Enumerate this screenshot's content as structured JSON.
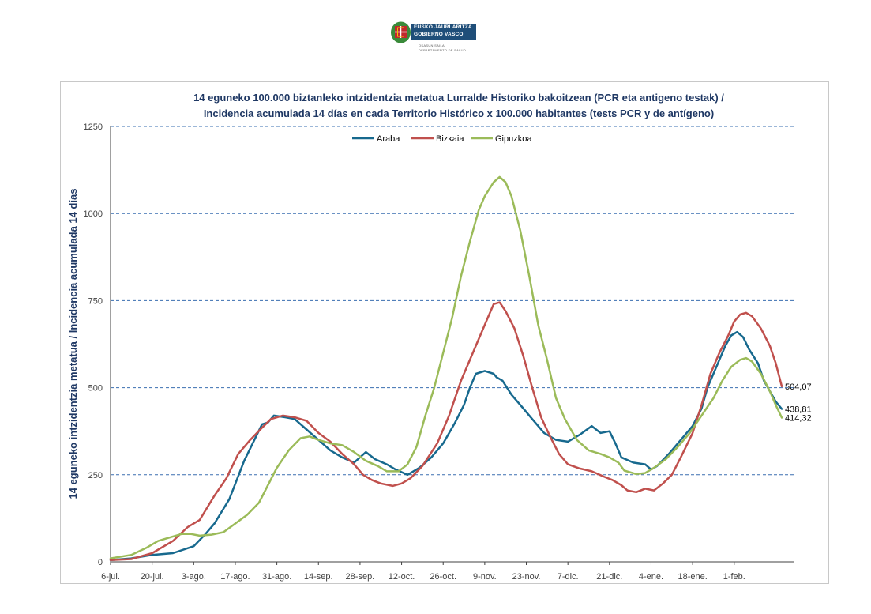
{
  "header": {
    "logo": {
      "line1": "EUSKO JAURLARITZA",
      "line2": "GOBIERNO VASCO",
      "line3": "OSASUN SAILA",
      "line4": "DEPARTAMENTO DE SALUD",
      "colors": {
        "band": "#1f4e79",
        "seal_green": "#3a8a3a",
        "seal_red": "#c0282d"
      }
    }
  },
  "chart_data": {
    "type": "line",
    "title_line1": "14 eguneko 100.000 biztanleko intzidentzia metatua Lurralde Historiko bakoitzean (PCR eta antigeno  testak) /",
    "title_line2": "Incidencia acumulada  14 días en cada Territorio Histórico x 100.000 habitantes (tests PCR y de antígeno)",
    "ylabel": "14 eguneko intzidentzia metatua / Incidencia acumulada  14 días",
    "xlabel": "",
    "ylim": [
      0,
      1250
    ],
    "yticks": [
      "0",
      "250",
      "500",
      "750",
      "1000",
      "1250"
    ],
    "x_range_days": [
      0,
      230
    ],
    "xticks": [
      {
        "label": "6-jul.",
        "day": 0
      },
      {
        "label": "20-jul.",
        "day": 14
      },
      {
        "label": "3-ago.",
        "day": 28
      },
      {
        "label": "17-ago.",
        "day": 42
      },
      {
        "label": "31-ago.",
        "day": 56
      },
      {
        "label": "14-sep.",
        "day": 70
      },
      {
        "label": "28-sep.",
        "day": 84
      },
      {
        "label": "12-oct.",
        "day": 98
      },
      {
        "label": "26-oct.",
        "day": 112
      },
      {
        "label": "9-nov.",
        "day": 126
      },
      {
        "label": "23-nov.",
        "day": 140
      },
      {
        "label": "7-dic.",
        "day": 154
      },
      {
        "label": "21-dic.",
        "day": 168
      },
      {
        "label": "4-ene.",
        "day": 182
      },
      {
        "label": "18-ene.",
        "day": 196
      },
      {
        "label": "1-feb.",
        "day": 210
      }
    ],
    "grid": "horizontal-dashed",
    "legend_position": "top-center",
    "series": [
      {
        "name": "Araba",
        "color": "#17698e",
        "end_label": "438,81",
        "points": [
          [
            0,
            5
          ],
          [
            7,
            10
          ],
          [
            14,
            20
          ],
          [
            21,
            25
          ],
          [
            28,
            45
          ],
          [
            32,
            80
          ],
          [
            35,
            110
          ],
          [
            40,
            180
          ],
          [
            45,
            290
          ],
          [
            49,
            360
          ],
          [
            51,
            395
          ],
          [
            53,
            400
          ],
          [
            55,
            420
          ],
          [
            59,
            415
          ],
          [
            62,
            410
          ],
          [
            66,
            380
          ],
          [
            70,
            350
          ],
          [
            74,
            320
          ],
          [
            78,
            300
          ],
          [
            82,
            285
          ],
          [
            86,
            315
          ],
          [
            89,
            295
          ],
          [
            93,
            280
          ],
          [
            96,
            265
          ],
          [
            100,
            250
          ],
          [
            104,
            270
          ],
          [
            108,
            300
          ],
          [
            112,
            340
          ],
          [
            116,
            400
          ],
          [
            119,
            450
          ],
          [
            121,
            500
          ],
          [
            123,
            540
          ],
          [
            126,
            548
          ],
          [
            129,
            540
          ],
          [
            130,
            530
          ],
          [
            132,
            520
          ],
          [
            135,
            480
          ],
          [
            139,
            440
          ],
          [
            142,
            410
          ],
          [
            146,
            370
          ],
          [
            150,
            350
          ],
          [
            154,
            345
          ],
          [
            158,
            365
          ],
          [
            162,
            390
          ],
          [
            165,
            370
          ],
          [
            168,
            375
          ],
          [
            170,
            340
          ],
          [
            172,
            300
          ],
          [
            176,
            285
          ],
          [
            180,
            280
          ],
          [
            182,
            265
          ],
          [
            184,
            275
          ],
          [
            188,
            310
          ],
          [
            192,
            350
          ],
          [
            196,
            390
          ],
          [
            199,
            440
          ],
          [
            201,
            500
          ],
          [
            204,
            560
          ],
          [
            207,
            620
          ],
          [
            209,
            650
          ],
          [
            211,
            660
          ],
          [
            213,
            645
          ],
          [
            215,
            610
          ],
          [
            218,
            570
          ],
          [
            220,
            520
          ],
          [
            224,
            460
          ],
          [
            226,
            439
          ]
        ]
      },
      {
        "name": "Bizkaia",
        "color": "#c0504d",
        "end_label": "504,07",
        "points": [
          [
            0,
            5
          ],
          [
            7,
            8
          ],
          [
            14,
            25
          ],
          [
            21,
            60
          ],
          [
            26,
            100
          ],
          [
            30,
            120
          ],
          [
            35,
            190
          ],
          [
            39,
            240
          ],
          [
            43,
            310
          ],
          [
            47,
            350
          ],
          [
            51,
            385
          ],
          [
            54,
            410
          ],
          [
            58,
            420
          ],
          [
            62,
            415
          ],
          [
            66,
            405
          ],
          [
            70,
            370
          ],
          [
            74,
            345
          ],
          [
            78,
            310
          ],
          [
            82,
            280
          ],
          [
            85,
            250
          ],
          [
            88,
            235
          ],
          [
            91,
            225
          ],
          [
            95,
            218
          ],
          [
            98,
            225
          ],
          [
            101,
            240
          ],
          [
            105,
            275
          ],
          [
            110,
            340
          ],
          [
            114,
            420
          ],
          [
            118,
            520
          ],
          [
            121,
            580
          ],
          [
            124,
            640
          ],
          [
            127,
            700
          ],
          [
            129,
            740
          ],
          [
            131,
            745
          ],
          [
            133,
            720
          ],
          [
            136,
            670
          ],
          [
            139,
            590
          ],
          [
            142,
            500
          ],
          [
            145,
            415
          ],
          [
            148,
            360
          ],
          [
            151,
            310
          ],
          [
            154,
            280
          ],
          [
            158,
            268
          ],
          [
            162,
            260
          ],
          [
            166,
            245
          ],
          [
            169,
            235
          ],
          [
            172,
            220
          ],
          [
            174,
            205
          ],
          [
            177,
            200
          ],
          [
            180,
            210
          ],
          [
            183,
            205
          ],
          [
            186,
            225
          ],
          [
            189,
            250
          ],
          [
            192,
            300
          ],
          [
            196,
            370
          ],
          [
            199,
            450
          ],
          [
            202,
            540
          ],
          [
            205,
            600
          ],
          [
            208,
            650
          ],
          [
            210,
            690
          ],
          [
            212,
            710
          ],
          [
            214,
            715
          ],
          [
            216,
            705
          ],
          [
            219,
            670
          ],
          [
            222,
            620
          ],
          [
            224,
            570
          ],
          [
            226,
            504
          ]
        ]
      },
      {
        "name": "Gipuzkoa",
        "color": "#9bbb59",
        "end_label": "414,32",
        "points": [
          [
            0,
            10
          ],
          [
            7,
            20
          ],
          [
            12,
            40
          ],
          [
            16,
            60
          ],
          [
            20,
            70
          ],
          [
            24,
            80
          ],
          [
            27,
            80
          ],
          [
            30,
            75
          ],
          [
            34,
            78
          ],
          [
            38,
            85
          ],
          [
            42,
            110
          ],
          [
            46,
            135
          ],
          [
            50,
            170
          ],
          [
            53,
            220
          ],
          [
            56,
            270
          ],
          [
            60,
            320
          ],
          [
            64,
            355
          ],
          [
            67,
            360
          ],
          [
            70,
            350
          ],
          [
            74,
            340
          ],
          [
            78,
            335
          ],
          [
            82,
            315
          ],
          [
            86,
            290
          ],
          [
            90,
            275
          ],
          [
            93,
            260
          ],
          [
            97,
            260
          ],
          [
            100,
            280
          ],
          [
            103,
            330
          ],
          [
            106,
            420
          ],
          [
            109,
            500
          ],
          [
            112,
            600
          ],
          [
            115,
            700
          ],
          [
            118,
            820
          ],
          [
            121,
            920
          ],
          [
            124,
            1010
          ],
          [
            126,
            1050
          ],
          [
            129,
            1090
          ],
          [
            131,
            1105
          ],
          [
            133,
            1090
          ],
          [
            135,
            1050
          ],
          [
            138,
            950
          ],
          [
            141,
            820
          ],
          [
            144,
            680
          ],
          [
            147,
            580
          ],
          [
            150,
            470
          ],
          [
            153,
            410
          ],
          [
            157,
            350
          ],
          [
            161,
            320
          ],
          [
            165,
            310
          ],
          [
            168,
            300
          ],
          [
            171,
            285
          ],
          [
            173,
            262
          ],
          [
            177,
            252
          ],
          [
            180,
            255
          ],
          [
            183,
            270
          ],
          [
            187,
            295
          ],
          [
            191,
            330
          ],
          [
            195,
            370
          ],
          [
            199,
            420
          ],
          [
            203,
            470
          ],
          [
            206,
            520
          ],
          [
            209,
            560
          ],
          [
            212,
            580
          ],
          [
            214,
            585
          ],
          [
            216,
            575
          ],
          [
            219,
            540
          ],
          [
            222,
            490
          ],
          [
            224,
            450
          ],
          [
            226,
            414
          ]
        ]
      }
    ]
  }
}
